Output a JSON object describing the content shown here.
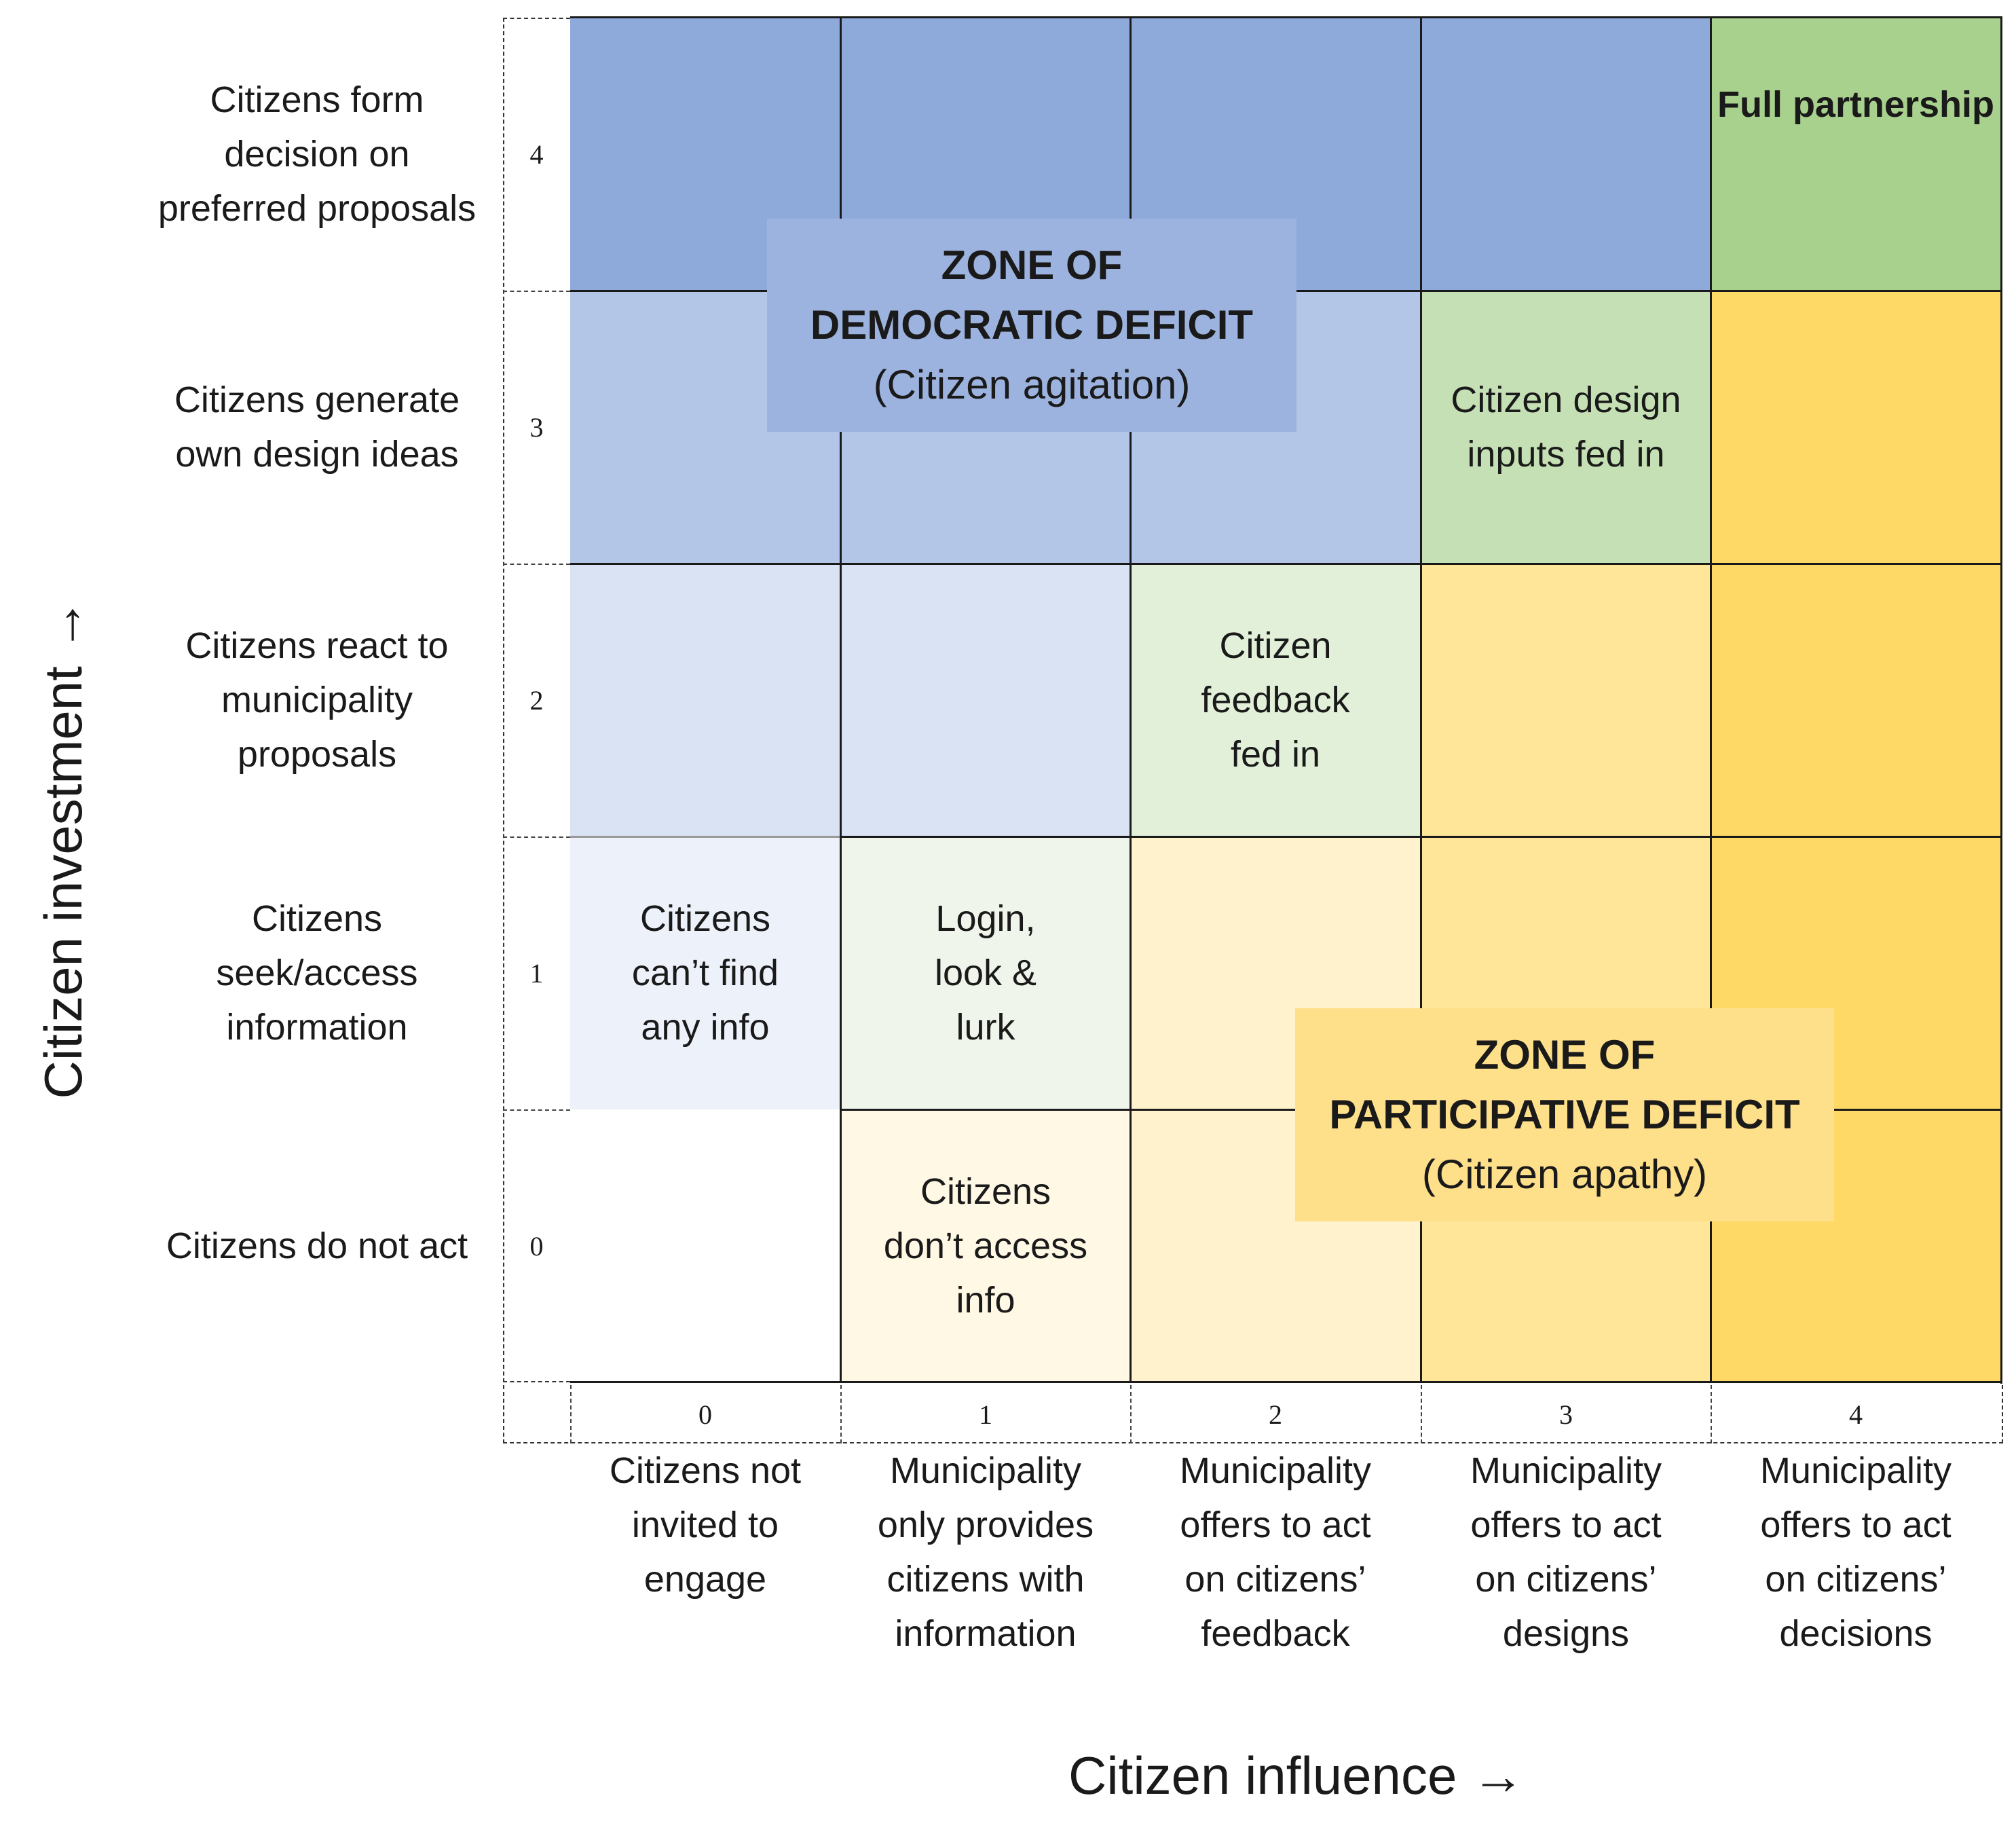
{
  "y_axis": {
    "title": "Citizen investment →"
  },
  "x_axis": {
    "title": "Citizen influence →"
  },
  "levels": [
    "0",
    "1",
    "2",
    "3",
    "4"
  ],
  "rows": [
    {
      "level": "4",
      "label": "Citizens form decision on preferred proposals"
    },
    {
      "level": "3",
      "label": "Citizens generate own design ideas"
    },
    {
      "level": "2",
      "label": "Citizens react to municipality proposals"
    },
    {
      "level": "1",
      "label": "Citizens seek/access information"
    },
    {
      "level": "0",
      "label": "Citizens do not act"
    }
  ],
  "columns": [
    {
      "level": "0",
      "label": "Citizens not invited to engage"
    },
    {
      "level": "1",
      "label": "Municipality only provides citizens with information"
    },
    {
      "level": "2",
      "label": "Municipality offers to act on citizens’ feedback"
    },
    {
      "level": "3",
      "label": "Municipality offers to act on citizens’ designs"
    },
    {
      "level": "4",
      "label": "Municipality offers to act on citizens’ decisions"
    }
  ],
  "cell_labels": {
    "full_partnership": "Full partnership",
    "design_inputs": "Citizen design inputs fed in",
    "feedback": "Citizen feedback fed in",
    "cant_find": "Citizens can’t find any info",
    "login_lurk": "Login, look & lurk",
    "dont_access": "Citizens don’t access info"
  },
  "zones": {
    "democratic": {
      "title_line1": "ZONE OF",
      "title_line2": "DEMOCRATIC DEFICIT",
      "subtitle": "(Citizen agitation)"
    },
    "participative": {
      "title_line1": "ZONE OF",
      "title_line2": "PARTICIPATIVE DEFICIT",
      "subtitle": "(Citizen apathy)"
    }
  },
  "colors": {
    "blue_dark": "#8eaadb",
    "blue_mid": "#b4c6e7",
    "blue_light": "#dae3f3",
    "blue_faint": "#edf1f9",
    "green_dark": "#a9d18e",
    "green_mid": "#c5e0b4",
    "green_light": "#e2f0d9",
    "green_faint": "#eff5ea",
    "yellow_dark": "#ffd966",
    "yellow_mid": "#ffe699",
    "yellow_light": "#fff2cc",
    "yellow_faint": "#fef8e4",
    "white": "#ffffff"
  }
}
